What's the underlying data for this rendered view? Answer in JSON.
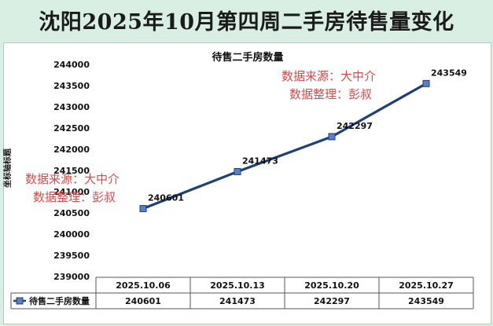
{
  "page": {
    "title": "沈阳2025年10月第四周二手房待售量变化"
  },
  "watermarks": [
    {
      "line1": "数据来源：大中介",
      "line2": "数据整理：彭叔"
    },
    {
      "line1": "数据来源：大中介",
      "line2": "数据整理：彭叔"
    }
  ],
  "colors": {
    "line": "#1f3f78",
    "marker_fill": "#5b7fc4",
    "watermark": "#e04848",
    "grid": "#bcbcbc",
    "panel_bg": "#ffffff",
    "page_bg": "#d9efe3"
  },
  "chart_data": {
    "type": "line",
    "title": "待售二手房数量",
    "xlabel": "",
    "ylabel": "坐标轴标题",
    "categories": [
      "2025.10.06",
      "2025.10.13",
      "2025.10.20",
      "2025.10.27"
    ],
    "series": [
      {
        "name": "待售二手房数量",
        "values": [
          240601,
          241473,
          242297,
          243549
        ]
      }
    ],
    "ylim": [
      239000,
      244000
    ],
    "yticks": [
      239000,
      239500,
      240000,
      240500,
      241000,
      241500,
      242000,
      242500,
      243000,
      243500,
      244000
    ],
    "grid": false,
    "data_labels": [
      "240601",
      "241473",
      "242297",
      "243549"
    ],
    "data_table": {
      "legend_label": "待售二手房数量",
      "headers": [
        "2025.10.06",
        "2025.10.13",
        "2025.10.20",
        "2025.10.27"
      ],
      "values": [
        "240601",
        "241473",
        "242297",
        "243549"
      ]
    }
  }
}
